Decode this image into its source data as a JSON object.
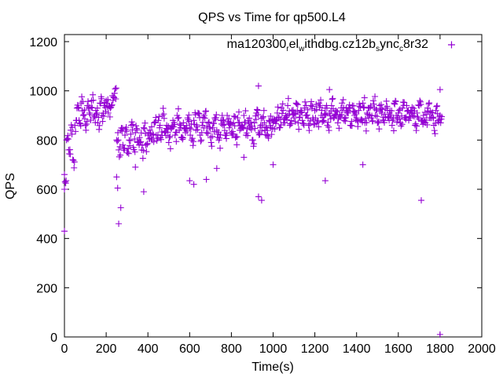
{
  "chart_data": {
    "type": "scatter",
    "title": "QPS vs Time for qp500.L4",
    "xlabel": "Time(s)",
    "ylabel": "QPS",
    "xlim": [
      0,
      2000
    ],
    "ylim": [
      0,
      1200
    ],
    "xticks": [
      0,
      200,
      400,
      600,
      800,
      1000,
      1200,
      1400,
      1600,
      1800,
      2000
    ],
    "yticks": [
      0,
      200,
      400,
      600,
      800,
      1000,
      1200
    ],
    "grid": false,
    "legend_position": "top-right",
    "series": [
      {
        "name": "ma120300_rel_withdbg.cz12b_sync_c8r32",
        "name_parts": [
          "ma120300",
          "r",
          "el",
          "w",
          "ithdbg.cz12b",
          "s",
          "ync",
          "c",
          "8r32"
        ],
        "color": "#9400d3",
        "marker": "plus",
        "x_start": 0,
        "x_step": 10,
        "y": [
          660,
          800,
          760,
          840,
          720,
          860,
          930,
          880,
          950,
          900,
          860,
          940,
          910,
          960,
          890,
          920,
          870,
          950,
          900,
          940,
          960,
          910,
          930,
          980,
          990,
          800,
          760,
          840,
          780,
          820,
          750,
          800,
          860,
          770,
          830,
          790,
          810,
          760,
          850,
          780,
          820,
          840,
          800,
          870,
          820,
          880,
          810,
          900,
          830,
          860,
          790,
          850,
          880,
          820,
          900,
          840,
          810,
          870,
          830,
          890,
          850,
          800,
          880,
          840,
          910,
          820,
          860,
          900,
          830,
          870,
          810,
          850,
          890,
          840,
          800,
          880,
          860,
          820,
          900,
          850,
          830,
          870,
          810,
          890,
          840,
          860,
          900,
          820,
          880,
          850,
          800,
          870,
          910,
          830,
          860,
          890,
          840,
          820,
          880,
          850,
          870,
          880,
          910,
          850,
          930,
          870,
          900,
          940,
          860,
          920,
          890,
          950,
          870,
          910,
          880,
          930,
          900,
          860,
          940,
          890,
          920,
          870,
          950,
          900,
          880,
          930,
          860,
          910,
          940,
          890,
          920,
          870,
          900,
          950,
          880,
          930,
          910,
          860,
          940,
          900,
          890,
          920,
          880,
          950,
          870,
          910,
          930,
          890,
          960,
          900,
          870,
          940,
          910,
          880,
          930,
          890,
          920,
          860,
          950,
          900,
          910,
          870,
          930,
          890,
          940,
          880,
          920,
          900,
          860,
          910,
          940,
          880,
          900,
          870,
          930,
          890,
          910,
          860,
          920,
          880,
          900
        ],
        "outliers": [
          [
            0,
            600
          ],
          [
            0,
            430
          ],
          [
            250,
            650
          ],
          [
            255,
            605
          ],
          [
            260,
            460
          ],
          [
            270,
            525
          ],
          [
            340,
            690
          ],
          [
            380,
            590
          ],
          [
            600,
            635
          ],
          [
            620,
            620
          ],
          [
            680,
            640
          ],
          [
            730,
            685
          ],
          [
            860,
            730
          ],
          [
            930,
            1020
          ],
          [
            930,
            570
          ],
          [
            945,
            555
          ],
          [
            1000,
            700
          ],
          [
            1250,
            635
          ],
          [
            1270,
            1005
          ],
          [
            1430,
            700
          ],
          [
            1710,
            555
          ],
          [
            1800,
            10
          ],
          [
            1800,
            1005
          ]
        ]
      }
    ]
  }
}
